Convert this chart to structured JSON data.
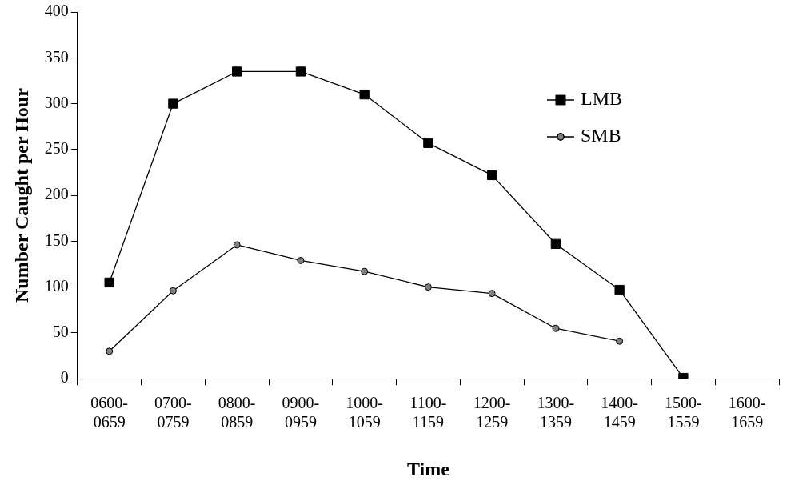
{
  "chart_data": {
    "type": "line",
    "xlabel": "Time",
    "ylabel": "Number Caught per Hour",
    "categories": [
      "0600-0659",
      "0700-0759",
      "0800-0859",
      "0900-0959",
      "1000-1059",
      "1100-1159",
      "1200-1259",
      "1300-1359",
      "1400-1459",
      "1500-1559",
      "1600-1659"
    ],
    "series": [
      {
        "name": "LMB",
        "color": "#000000",
        "marker": "square",
        "values": [
          105,
          300,
          335,
          335,
          310,
          257,
          222,
          147,
          97,
          1,
          null
        ]
      },
      {
        "name": "SMB",
        "color": "#808080",
        "marker": "circle",
        "values": [
          30,
          96,
          146,
          129,
          117,
          100,
          93,
          55,
          41,
          null,
          null
        ]
      }
    ],
    "ylim": [
      0,
      400
    ],
    "yticks": [
      0,
      50,
      100,
      150,
      200,
      250,
      300,
      350,
      400
    ],
    "grid": false,
    "legend": "top right",
    "line_style": "solid"
  }
}
